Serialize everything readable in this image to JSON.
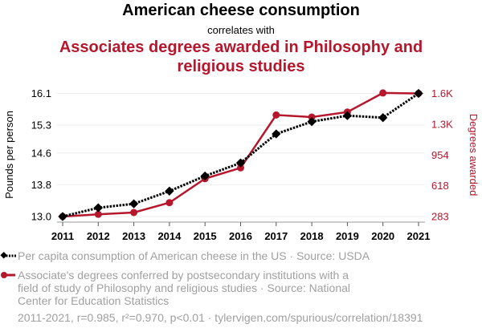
{
  "header": {
    "title": "American cheese consumption",
    "connector": "correlates with",
    "subtitle": "Associates degrees awarded in Philosophy and religious studies"
  },
  "colors": {
    "series1": "#000000",
    "series2": "#b5172d",
    "legend_text": "#a0a0a0",
    "grid": "#eeeeee"
  },
  "chart_data": {
    "type": "line",
    "x": [
      2011,
      2012,
      2013,
      2014,
      2015,
      2016,
      2017,
      2018,
      2019,
      2020,
      2021
    ],
    "xtick_labels": [
      "2011",
      "2012",
      "2013",
      "2014",
      "2015",
      "2016",
      "2017",
      "2018",
      "2019",
      "2020",
      "2021"
    ],
    "series": [
      {
        "name": "Per capita consumption of American cheese in the US",
        "axis": "left",
        "marker": "diamond",
        "line_style": "dotted",
        "color": "#000000",
        "values": [
          13.0,
          13.22,
          13.32,
          13.64,
          14.02,
          14.35,
          15.08,
          15.39,
          15.54,
          15.49,
          16.1
        ]
      },
      {
        "name": "Associate's degrees conferred by postsecondary institutions with a field of study of Philosophy and religious studies",
        "axis": "right",
        "marker": "circle",
        "line_style": "solid",
        "color": "#b5172d",
        "values": [
          283,
          307,
          327,
          434,
          696,
          814,
          1390,
          1367,
          1422,
          1630,
          1625
        ]
      }
    ],
    "left_axis": {
      "label": "Pounds per person",
      "ticks": [
        13.0,
        13.8,
        14.6,
        15.3,
        16.1
      ],
      "tick_labels": [
        "13.0",
        "13.8",
        "14.6",
        "15.3",
        "16.1"
      ],
      "range": [
        13.0,
        16.1
      ]
    },
    "right_axis": {
      "label": "Degrees awarded",
      "ticks": [
        283,
        618,
        954,
        1289,
        1625
      ],
      "tick_labels": [
        "283",
        "618",
        "954",
        "1.3K",
        "1.6K"
      ],
      "range": [
        283,
        1625
      ]
    },
    "grid": true,
    "legend_position": "bottom-left"
  },
  "legend": [
    {
      "icon": "black-diamond-dotted-line-icon",
      "text": "Per capita consumption of American cheese in the US · Source: USDA"
    },
    {
      "icon": "red-circle-solid-line-icon",
      "text": "Associate's degrees conferred by postsecondary institutions with a field of study of Philosophy and religious studies · Source: National Center for Education Statistics"
    }
  ],
  "footer": "2011-2021, r=0.985, r²=0.970, p<0.01 · tylervigen.com/spurious/correlation/18391"
}
